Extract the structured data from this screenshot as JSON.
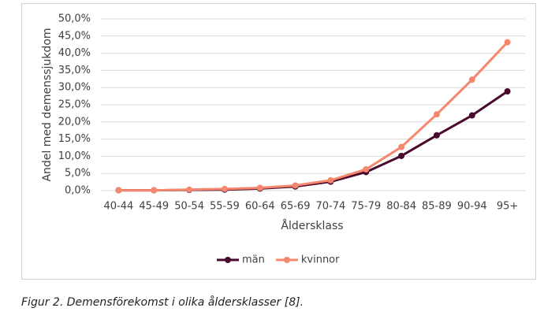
{
  "chart_data": {
    "type": "line",
    "y_label": "Andel med demenssjukdom",
    "x_label": "Åldersklass",
    "caption": "Figur 2. Demensförekomst i olika åldersklasser [8].",
    "categories": [
      "40-44",
      "45-49",
      "50-54",
      "55-59",
      "60-64",
      "65-69",
      "70-74",
      "75-79",
      "80-84",
      "85-89",
      "90-94",
      "95+"
    ],
    "series": [
      {
        "name": "män",
        "color": "#4a0a2e",
        "values": [
          0.1,
          0.1,
          0.2,
          0.3,
          0.6,
          1.2,
          2.6,
          5.4,
          10.1,
          16.1,
          21.9,
          28.9
        ]
      },
      {
        "name": "kvinnor",
        "color": "#f4876e",
        "values": [
          0.1,
          0.1,
          0.3,
          0.5,
          0.8,
          1.5,
          3.0,
          6.2,
          12.7,
          22.2,
          32.3,
          43.2
        ]
      }
    ],
    "ylim": [
      0,
      50
    ],
    "yticks": [
      {
        "value": 0,
        "label": "0,0%"
      },
      {
        "value": 5,
        "label": "5,0%"
      },
      {
        "value": 10,
        "label": "10,0%"
      },
      {
        "value": 15,
        "label": "15,0%"
      },
      {
        "value": 20,
        "label": "20,0%"
      },
      {
        "value": 25,
        "label": "25,0%"
      },
      {
        "value": 30,
        "label": "30,0%"
      },
      {
        "value": 35,
        "label": "35,0%"
      },
      {
        "value": 40,
        "label": "40,0%"
      },
      {
        "value": 45,
        "label": "45,0%"
      },
      {
        "value": 50,
        "label": "50,0%"
      }
    ],
    "grid": true,
    "legend": "bottom"
  }
}
